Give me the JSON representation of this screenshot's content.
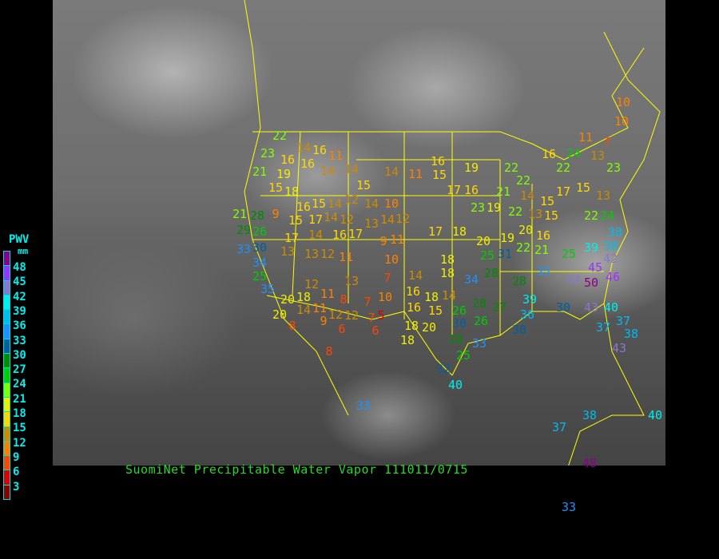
{
  "title": "SuomiNet Precipitable Water Vapor 111011/0715",
  "legend": {
    "title": "PWV",
    "unit": "mm",
    "labels": [
      "48",
      "45",
      "42",
      "39",
      "36",
      "33",
      "30",
      "27",
      "24",
      "21",
      "18",
      "15",
      "12",
      "9",
      "6",
      "3"
    ],
    "colors": [
      "#8b008b",
      "#9933ff",
      "#8877cc",
      "#00eeee",
      "#00bbee",
      "#1e90ff",
      "#005f9f",
      "#008b00",
      "#00cd00",
      "#7fff00",
      "#eeee00",
      "#ffd700",
      "#cd8b00",
      "#ff8000",
      "#ff4500",
      "#dd0000",
      "#8b0000"
    ]
  },
  "map": {
    "background": "GOES infrared satellite image, North America",
    "border_color": "#ffff00"
  },
  "stations": [
    22,
    23,
    14,
    16,
    11,
    21,
    19,
    16,
    16,
    14,
    14,
    15,
    18,
    16,
    15,
    14,
    12,
    15,
    14,
    10,
    14,
    11,
    16,
    15,
    19,
    17,
    16,
    22,
    22,
    16,
    24,
    13,
    23,
    22,
    11,
    7,
    10,
    10,
    21,
    14,
    15,
    17,
    15,
    13,
    21,
    28,
    9,
    15,
    17,
    14,
    12,
    13,
    14,
    12,
    23,
    19,
    22,
    13,
    15,
    22,
    24,
    29,
    26,
    17,
    14,
    16,
    17,
    9,
    11,
    17,
    18,
    20,
    19,
    20,
    16,
    33,
    30,
    13,
    13,
    12,
    11,
    10,
    18,
    25,
    31,
    22,
    21,
    34,
    25,
    35,
    12,
    11,
    13,
    7,
    14,
    18,
    34,
    28,
    28,
    35,
    25,
    39,
    38,
    38,
    42,
    45,
    44,
    50,
    46,
    20,
    18,
    11,
    8,
    7,
    10,
    16,
    18,
    14,
    20,
    14,
    12,
    12,
    7,
    5,
    16,
    15,
    26,
    28,
    27,
    39,
    36,
    30,
    43,
    40,
    8,
    9,
    6,
    6,
    18,
    20,
    30,
    26,
    30,
    37,
    37,
    38,
    18,
    28,
    33,
    43,
    8,
    25,
    32,
    40,
    33,
    37,
    38,
    40,
    48,
    33
  ]
}
